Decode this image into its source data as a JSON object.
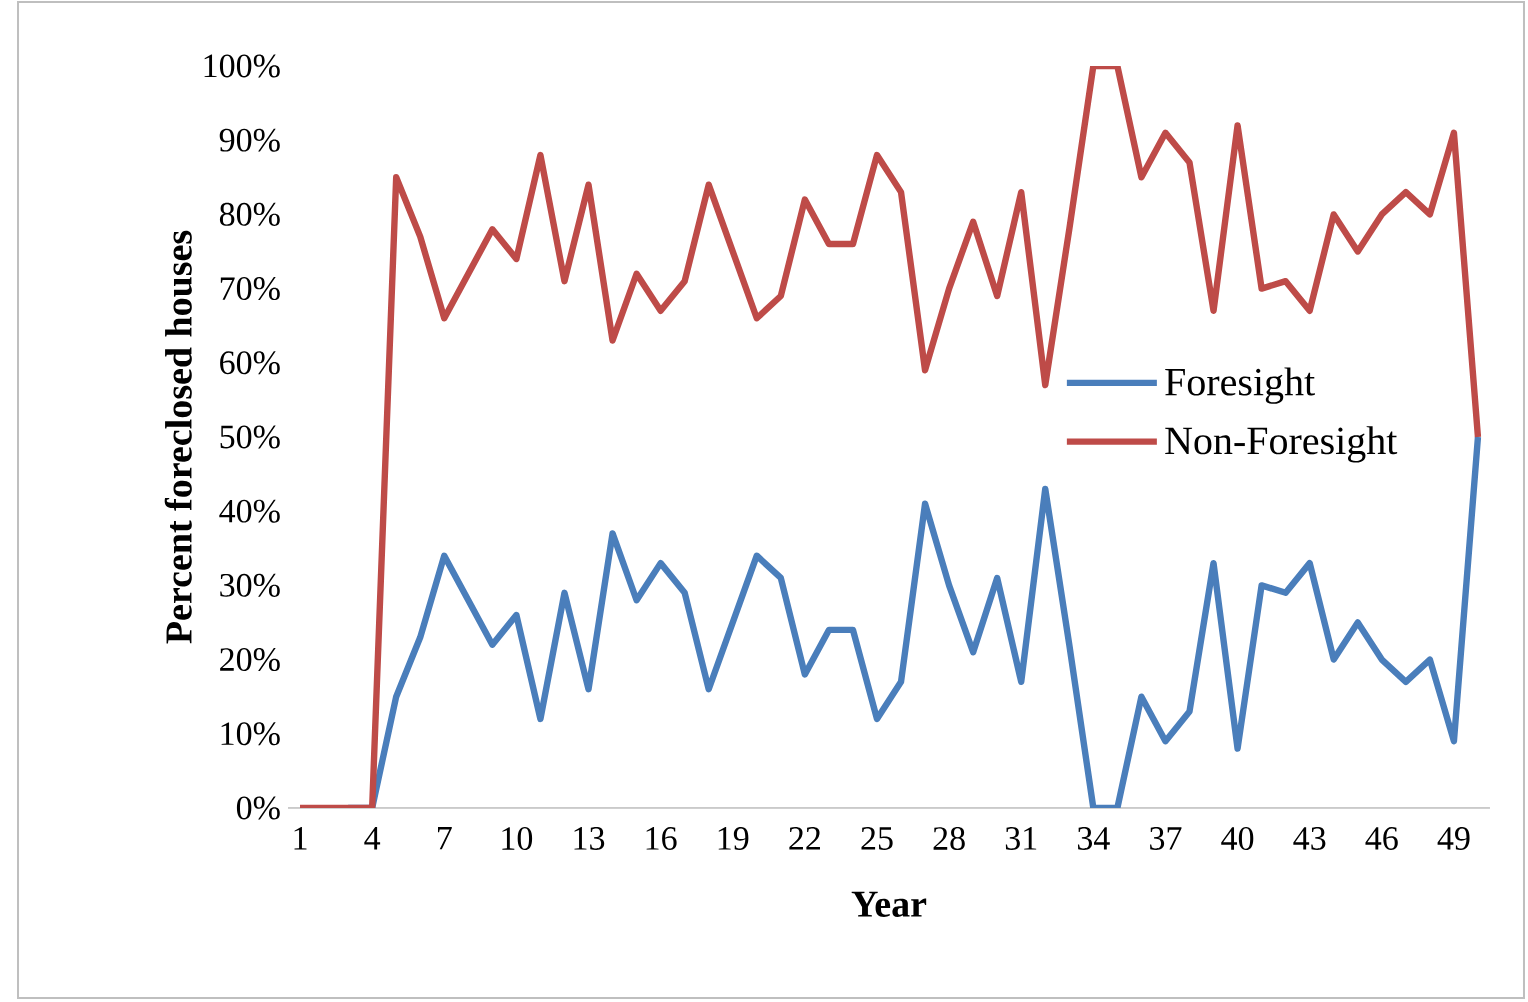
{
  "chart_data": {
    "type": "line",
    "xlabel": "Year",
    "ylabel": "Percent foreclosed houses",
    "categories": [
      "1",
      null,
      null,
      "4",
      null,
      null,
      "7",
      null,
      null,
      "10",
      null,
      null,
      "13",
      null,
      null,
      "16",
      null,
      null,
      "19",
      null,
      null,
      "22",
      null,
      null,
      "25",
      null,
      null,
      "28",
      null,
      null,
      "31",
      null,
      null,
      "34",
      null,
      null,
      "37",
      null,
      null,
      "40",
      null,
      null,
      "43",
      null,
      null,
      "46",
      null,
      null,
      "49",
      null
    ],
    "series": [
      {
        "name": "Foresight",
        "color": "#4a7ebb",
        "values": [
          null,
          null,
          0,
          0,
          15,
          23,
          34,
          28,
          22,
          26,
          12,
          29,
          16,
          37,
          28,
          33,
          29,
          16,
          25,
          34,
          31,
          18,
          24,
          24,
          12,
          17,
          41,
          30,
          21,
          31,
          17,
          43,
          22,
          0,
          0,
          15,
          9,
          13,
          33,
          8,
          30,
          29,
          33,
          20,
          25,
          20,
          17,
          20,
          9,
          50
        ]
      },
      {
        "name": "Non-Foresight",
        "color": "#be4b48",
        "values": [
          0,
          0,
          0,
          0,
          85,
          77,
          66,
          72,
          78,
          74,
          88,
          71,
          84,
          63,
          72,
          67,
          71,
          84,
          75,
          66,
          69,
          82,
          76,
          76,
          88,
          83,
          59,
          70,
          79,
          69,
          83,
          57,
          78,
          100,
          100,
          85,
          91,
          87,
          67,
          92,
          70,
          71,
          67,
          80,
          75,
          80,
          83,
          80,
          91,
          50
        ]
      }
    ],
    "ylim": [
      0,
      100
    ],
    "yticks": [
      {
        "value": 0,
        "label": "0%"
      },
      {
        "value": 10,
        "label": "10%"
      },
      {
        "value": 20,
        "label": "20%"
      },
      {
        "value": 30,
        "label": "30%"
      },
      {
        "value": 40,
        "label": "40%"
      },
      {
        "value": 50,
        "label": "50%"
      },
      {
        "value": 60,
        "label": "60%"
      },
      {
        "value": 70,
        "label": "70%"
      },
      {
        "value": 80,
        "label": "80%"
      },
      {
        "value": 90,
        "label": "90%"
      },
      {
        "value": 100,
        "label": "100%"
      }
    ],
    "legend": "right",
    "grid": false,
    "marker": "none",
    "line_style": "solid"
  }
}
